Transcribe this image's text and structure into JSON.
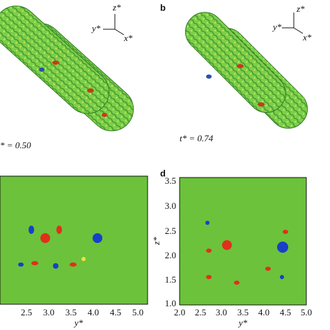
{
  "panels": [
    {
      "time_label": "* = 0.50",
      "triad": {
        "z": "z*",
        "y": "y*",
        "x": "x*"
      }
    },
    {
      "label": "b",
      "time_label": "t* = 0.74",
      "triad": {
        "z": "z*",
        "y": "y*",
        "x": "x*"
      }
    },
    {
      "x_label": "y*",
      "x_ticks": [
        "2.5",
        "3.0",
        "3.5",
        "4.0",
        "4.5",
        "5.0"
      ]
    },
    {
      "label": "d",
      "x_label": "y*",
      "y_label": "z*",
      "x_ticks": [
        "2.0",
        "2.5",
        "3.0",
        "3.5",
        "4.0",
        "4.5",
        "5.0"
      ],
      "y_ticks": [
        "3.5",
        "3.0",
        "2.5",
        "2.0",
        "1.5",
        "1.0"
      ]
    }
  ]
}
